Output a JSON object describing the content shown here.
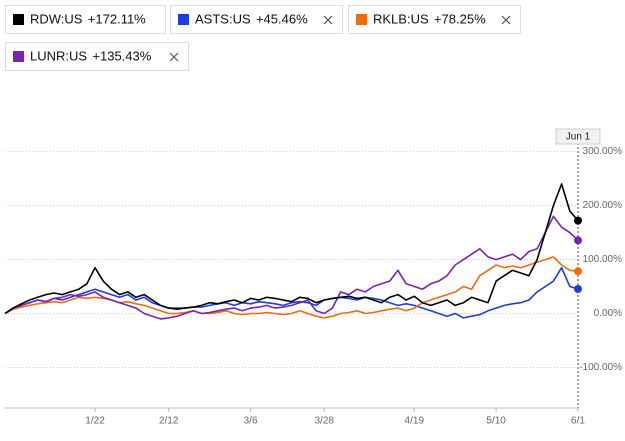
{
  "chart_data": {
    "type": "line",
    "x": [
      null,
      null,
      null,
      null,
      null,
      null,
      null,
      null,
      null,
      null,
      null,
      "1/22",
      null,
      null,
      null,
      null,
      null,
      null,
      null,
      null,
      "2/12",
      null,
      null,
      null,
      null,
      null,
      null,
      null,
      null,
      null,
      "3/6",
      null,
      null,
      null,
      null,
      null,
      null,
      null,
      null,
      "3/28",
      null,
      null,
      null,
      null,
      null,
      null,
      null,
      null,
      null,
      null,
      "4/19",
      null,
      null,
      null,
      null,
      null,
      null,
      null,
      null,
      null,
      "5/10",
      null,
      null,
      null,
      null,
      null,
      null,
      null,
      null,
      null,
      "6/1"
    ],
    "series": [
      {
        "name": "RDW:US",
        "label": "+172.11%",
        "color": "#000000",
        "values": [
          0,
          10,
          18,
          25,
          30,
          35,
          38,
          35,
          40,
          45,
          55,
          85,
          60,
          45,
          35,
          40,
          30,
          35,
          25,
          15,
          10,
          8,
          10,
          12,
          15,
          20,
          18,
          22,
          25,
          20,
          28,
          25,
          30,
          28,
          25,
          22,
          30,
          28,
          20,
          25,
          28,
          30,
          32,
          28,
          30,
          25,
          20,
          30,
          35,
          25,
          32,
          20,
          15,
          20,
          25,
          15,
          20,
          30,
          25,
          20,
          60,
          70,
          80,
          75,
          70,
          100,
          150,
          200,
          240,
          190,
          172.11
        ]
      },
      {
        "name": "ASTS:US",
        "label": "+45.46%",
        "color": "#1a3fe0",
        "values": [
          0,
          10,
          15,
          20,
          25,
          22,
          28,
          25,
          30,
          35,
          40,
          45,
          40,
          35,
          30,
          35,
          25,
          30,
          20,
          15,
          10,
          10,
          10,
          12,
          12,
          15,
          18,
          20,
          15,
          20,
          18,
          22,
          20,
          18,
          15,
          20,
          22,
          20,
          15,
          25,
          28,
          30,
          28,
          25,
          30,
          28,
          25,
          20,
          15,
          18,
          15,
          10,
          5,
          0,
          -5,
          0,
          -8,
          -5,
          -2,
          5,
          10,
          15,
          18,
          20,
          25,
          40,
          50,
          60,
          85,
          50,
          45.46
        ]
      },
      {
        "name": "RKLB:US",
        "label": "+78.25%",
        "color": "#f26b0f",
        "values": [
          0,
          8,
          12,
          15,
          18,
          20,
          22,
          20,
          25,
          30,
          28,
          30,
          28,
          25,
          20,
          22,
          18,
          15,
          10,
          5,
          0,
          0,
          2,
          5,
          0,
          0,
          2,
          5,
          0,
          -2,
          0,
          0,
          2,
          0,
          -2,
          0,
          5,
          0,
          -5,
          -8,
          -5,
          0,
          2,
          5,
          0,
          2,
          5,
          8,
          10,
          5,
          10,
          20,
          25,
          30,
          35,
          40,
          50,
          45,
          70,
          80,
          90,
          85,
          88,
          85,
          90,
          95,
          100,
          105,
          90,
          80,
          78.25
        ]
      },
      {
        "name": "LUNR:US",
        "label": "+135.43%",
        "color": "#7b22b8",
        "values": [
          0,
          10,
          15,
          20,
          25,
          22,
          28,
          30,
          35,
          32,
          35,
          40,
          30,
          25,
          20,
          15,
          10,
          0,
          -5,
          -10,
          -8,
          -5,
          0,
          5,
          0,
          2,
          5,
          8,
          10,
          5,
          10,
          12,
          15,
          10,
          12,
          15,
          20,
          25,
          5,
          0,
          10,
          40,
          35,
          45,
          40,
          50,
          55,
          60,
          80,
          55,
          50,
          45,
          55,
          60,
          70,
          90,
          100,
          110,
          120,
          105,
          100,
          105,
          110,
          100,
          115,
          120,
          150,
          180,
          160,
          150,
          135.43
        ]
      }
    ],
    "crosshair_label": "Jun 1",
    "ylim": [
      -175,
      340
    ],
    "yticks": [
      {
        "value": 300,
        "label": "300.00%"
      },
      {
        "value": 200,
        "label": "200.00%"
      },
      {
        "value": 100,
        "label": "100.00%"
      },
      {
        "value": 0,
        "label": "0.00%"
      },
      {
        "value": -100,
        "label": "-100.00%"
      }
    ],
    "grid": true
  }
}
